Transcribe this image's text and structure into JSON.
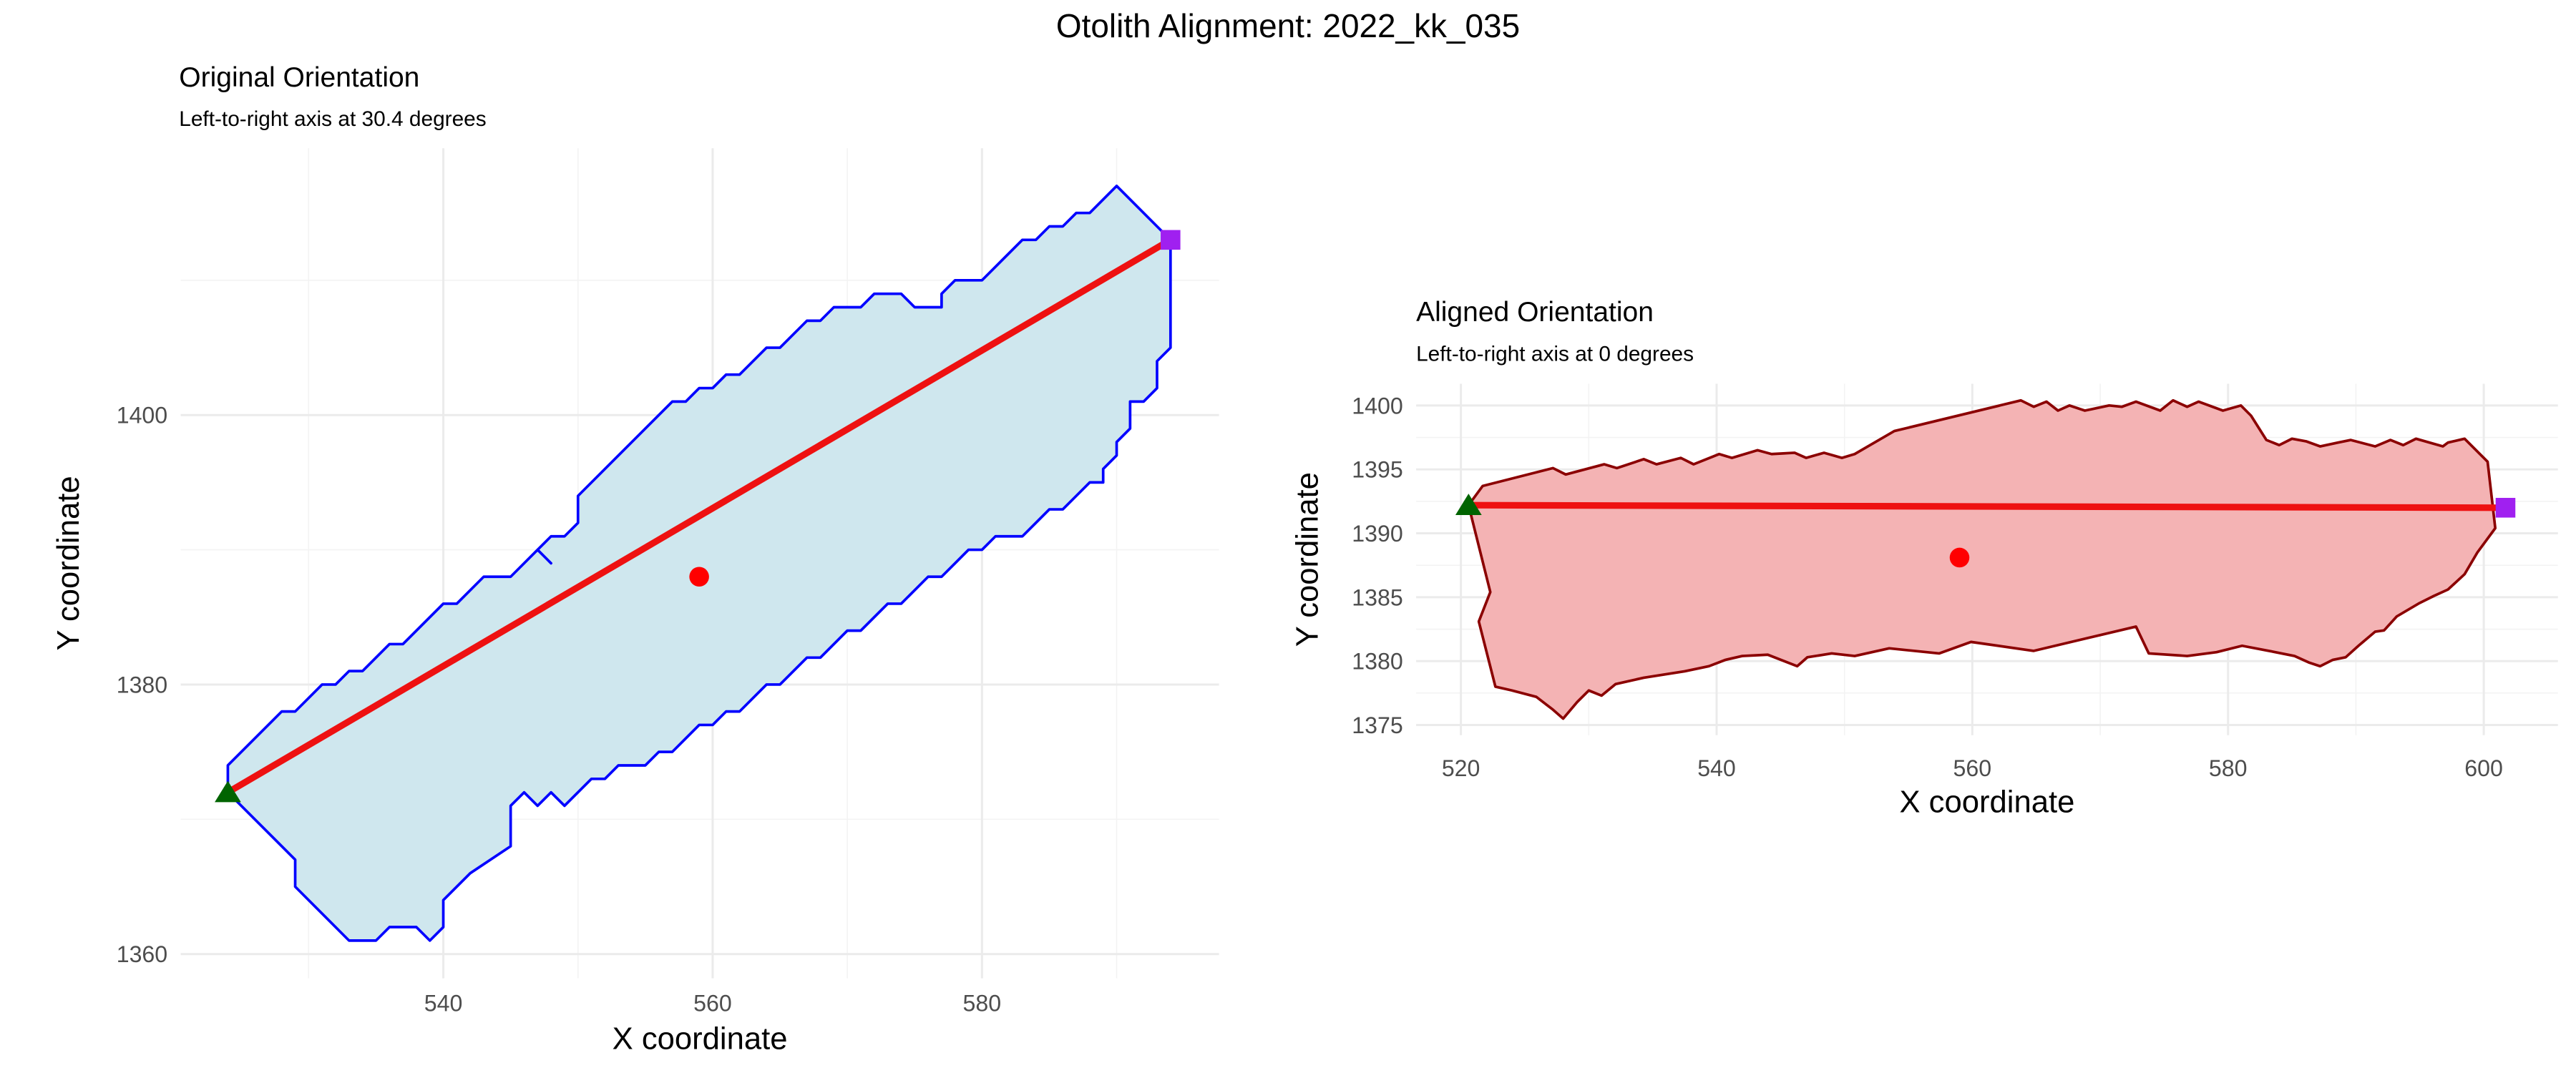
{
  "title": "Otolith Alignment: 2022_kk_035",
  "chart_data": [
    {
      "type": "polygon",
      "title": "Original Orientation",
      "subtitle": "Left-to-right axis at 30.4 degrees",
      "xlabel": "X coordinate",
      "ylabel": "Y coordinate",
      "xlim": [
        520.5,
        597.6
      ],
      "ylim": [
        1358.2,
        1419.8
      ],
      "xticks": [
        540,
        560,
        580
      ],
      "yticks": [
        1360,
        1380,
        1400
      ],
      "xminor": [
        530,
        550,
        570,
        590
      ],
      "yminor": [
        1370,
        1390,
        1410
      ],
      "grid": true,
      "outline": {
        "fill": "#cfe7ee",
        "color": "#0000ff",
        "x": [
          524,
          524,
          528,
          529,
          531,
          532,
          533,
          534,
          536,
          537,
          540,
          541,
          543,
          545,
          547,
          548,
          547,
          548,
          549,
          550,
          550,
          557,
          558,
          559,
          560,
          561,
          562,
          564,
          565,
          567,
          568,
          569,
          571,
          572,
          574,
          575,
          577,
          577,
          578,
          580,
          583,
          584,
          585,
          586,
          587,
          588,
          590,
          593,
          594,
          594,
          594,
          593,
          593,
          592,
          591,
          591,
          590,
          590,
          589,
          589,
          588,
          587,
          586,
          585,
          584,
          583,
          581,
          580,
          579,
          578,
          577,
          576,
          574,
          573,
          571,
          570,
          568,
          567,
          565,
          564,
          562,
          561,
          560,
          559,
          558,
          557,
          556,
          555,
          553,
          552,
          551,
          549,
          548,
          547,
          546,
          545,
          545,
          542,
          540,
          540,
          539,
          538,
          536,
          535,
          533,
          529,
          529
        ],
        "y": [
          1372,
          1374,
          1378,
          1378,
          1380,
          1380,
          1381,
          1381,
          1383,
          1383,
          1386,
          1386,
          1388,
          1388,
          1390,
          1389,
          1390,
          1391,
          1391,
          1392,
          1394,
          1401,
          1401,
          1402,
          1402,
          1403,
          1403,
          1405,
          1405,
          1407,
          1407,
          1408,
          1408,
          1409,
          1409,
          1408,
          1408,
          1409,
          1410,
          1410,
          1413,
          1413,
          1414,
          1414,
          1415,
          1415,
          1417,
          1414,
          1413,
          1411,
          1405,
          1404,
          1402,
          1401,
          1401,
          1399,
          1398,
          1397,
          1396,
          1395,
          1395,
          1394,
          1393,
          1393,
          1392,
          1391,
          1391,
          1390,
          1390,
          1389,
          1388,
          1388,
          1386,
          1386,
          1384,
          1384,
          1382,
          1382,
          1380,
          1380,
          1378,
          1378,
          1377,
          1377,
          1376,
          1375,
          1375,
          1374,
          1374,
          1373,
          1373,
          1371,
          1372,
          1371,
          1372,
          1371,
          1368,
          1366,
          1364,
          1362,
          1361,
          1362,
          1362,
          1361,
          1361,
          1365,
          1367
        ]
      },
      "axis_line": {
        "color": "#ee1111",
        "x": [
          524,
          594
        ],
        "y": [
          1372,
          1413
        ]
      },
      "start": {
        "color": "#006400",
        "x": 524,
        "y": 1372
      },
      "end": {
        "color": "#a020f0",
        "x": 594,
        "y": 1413
      },
      "centroid": {
        "color": "#ff0000",
        "x": 559,
        "y": 1388
      }
    },
    {
      "type": "polygon",
      "title": "Aligned Orientation",
      "subtitle": "Left-to-right axis at 0 degrees",
      "xlabel": "X coordinate",
      "ylabel": "Y coordinate",
      "xlim": [
        516.5,
        605.8
      ],
      "ylim": [
        1374.2,
        1401.7
      ],
      "xticks": [
        520,
        540,
        560,
        580,
        600
      ],
      "yticks": [
        1375,
        1380,
        1385,
        1390,
        1395,
        1400
      ],
      "xminor": [
        530,
        550,
        570,
        590
      ],
      "yminor": [
        1377.5,
        1382.5,
        1387.5,
        1392.5,
        1397.5
      ],
      "grid": true,
      "outline": {
        "fill": "#f4b3b4",
        "color": "#8b0000",
        "x": [
          520.6,
          521.7,
          527.2,
          528.2,
          531.2,
          532.2,
          534.3,
          535.3,
          537.2,
          538.2,
          540.2,
          541.2,
          543.2,
          544.3,
          546.1,
          547.0,
          548.4,
          549.8,
          550.8,
          553.9,
          563.8,
          564.8,
          565.8,
          566.7,
          567.6,
          568.8,
          570.7,
          571.7,
          572.8,
          574.7,
          575.7,
          576.8,
          577.7,
          579.6,
          581.0,
          581.8,
          583.0,
          584.0,
          585.0,
          586.1,
          587.2,
          588.6,
          589.6,
          591.5,
          592.7,
          593.7,
          594.7,
          596.8,
          597.2,
          598.5,
          600.3,
          600.9,
          599.5,
          598.5,
          597.2,
          596.1,
          594.9,
          593.2,
          592.2,
          591.5,
          590.2,
          589.2,
          588.2,
          587.2,
          586.3,
          585.2,
          583.2,
          581.1,
          579.1,
          576.8,
          573.8,
          572.8,
          564.8,
          559.9,
          557.4,
          553.5,
          550.8,
          549.0,
          547.1,
          546.3,
          544.0,
          542.0,
          540.7,
          539.4,
          537.5,
          534.3,
          532.1,
          531.0,
          530.0,
          529.1,
          528.0,
          527.2,
          525.9,
          524.0,
          522.7,
          521.4,
          522.3
        ],
        "y": [
          1392.2,
          1393.7,
          1395.1,
          1394.6,
          1395.4,
          1395.1,
          1395.8,
          1395.4,
          1395.9,
          1395.4,
          1396.2,
          1395.9,
          1396.5,
          1396.2,
          1396.3,
          1395.9,
          1396.3,
          1395.9,
          1396.2,
          1398.0,
          1400.4,
          1399.9,
          1400.3,
          1399.6,
          1400.0,
          1399.6,
          1400.0,
          1399.9,
          1400.3,
          1399.6,
          1400.4,
          1399.9,
          1400.3,
          1399.6,
          1400.0,
          1399.2,
          1397.3,
          1396.9,
          1397.4,
          1397.2,
          1396.8,
          1397.1,
          1397.3,
          1396.8,
          1397.3,
          1396.9,
          1397.4,
          1396.8,
          1397.1,
          1397.4,
          1395.6,
          1390.4,
          1388.5,
          1386.8,
          1385.6,
          1385.1,
          1384.5,
          1383.5,
          1382.4,
          1382.3,
          1381.2,
          1380.3,
          1380.1,
          1379.6,
          1379.9,
          1380.4,
          1380.8,
          1381.2,
          1380.7,
          1380.4,
          1380.6,
          1382.7,
          1380.8,
          1381.5,
          1380.6,
          1381.0,
          1380.4,
          1380.6,
          1380.3,
          1379.6,
          1380.5,
          1380.4,
          1380.1,
          1379.6,
          1379.2,
          1378.7,
          1378.2,
          1377.3,
          1377.7,
          1376.8,
          1375.5,
          1376.2,
          1377.2,
          1377.7,
          1378.0,
          1383.1,
          1385.4
        ]
      },
      "axis_line": {
        "color": "#ee1111",
        "x": [
          520.6,
          601.7
        ],
        "y": [
          1392.2,
          1392.0
        ]
      },
      "start": {
        "color": "#006400",
        "x": 520.6,
        "y": 1392.2
      },
      "end": {
        "color": "#a020f0",
        "x": 601.7,
        "y": 1392.0
      },
      "centroid": {
        "color": "#ff0000",
        "x": 559.0,
        "y": 1388.1
      }
    }
  ]
}
